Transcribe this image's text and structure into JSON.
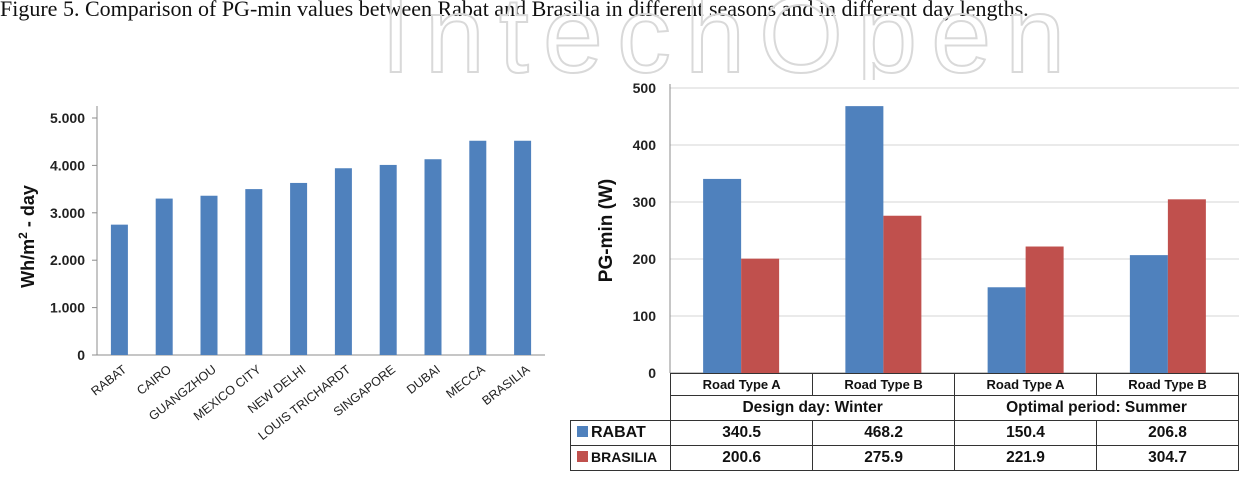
{
  "figure": {
    "caption": "Figure 5. Comparison of PG-min values between Rabat and Brasilia in different seasons and in different day lengths.",
    "watermark": "IntechOpen"
  },
  "chart_data": [
    {
      "type": "bar",
      "title": "",
      "ylabel_main": "Wh/m",
      "ylabel_sup": "2",
      "ylabel_rest": " - day",
      "categories": [
        "RABAT",
        "CAIRO",
        "GUANGZHOU",
        "MEXICO CITY",
        "NEW DELHI",
        "LOUIS TRICHARDT",
        "SINGAPORE",
        "DUBAI",
        "MECCA",
        "BRASILIA"
      ],
      "values": [
        2750,
        3300,
        3360,
        3500,
        3630,
        3940,
        4010,
        4130,
        4520,
        4520
      ],
      "ylim": [
        0,
        5000
      ],
      "ytick_labels": [
        "0",
        "1.000",
        "2.000",
        "3.000",
        "4.000",
        "5.000"
      ],
      "color": "#4f81bd",
      "grid": false
    },
    {
      "type": "bar",
      "ylabel": "PG-min (W)",
      "ylim": [
        0,
        500
      ],
      "ytick_labels": [
        "0",
        "100",
        "200",
        "300",
        "400",
        "500"
      ],
      "grid": true,
      "categories": [
        "Road Type A",
        "Road Type B",
        "Road Type A",
        "Road Type B"
      ],
      "groups": [
        "Design day: Winter",
        "Optimal period: Summer"
      ],
      "series": [
        {
          "name": "RABAT",
          "color": "#4f81bd",
          "values": [
            340.5,
            468.2,
            150.4,
            206.8
          ],
          "labels": [
            "340.5",
            "468.2",
            "150.4",
            "206.8"
          ]
        },
        {
          "name": "BRASILIA",
          "color": "#c0504d",
          "values": [
            200.6,
            275.9,
            221.9,
            304.7
          ],
          "labels": [
            "200.6",
            "275.9",
            "221.9",
            "304.7"
          ]
        }
      ]
    }
  ]
}
